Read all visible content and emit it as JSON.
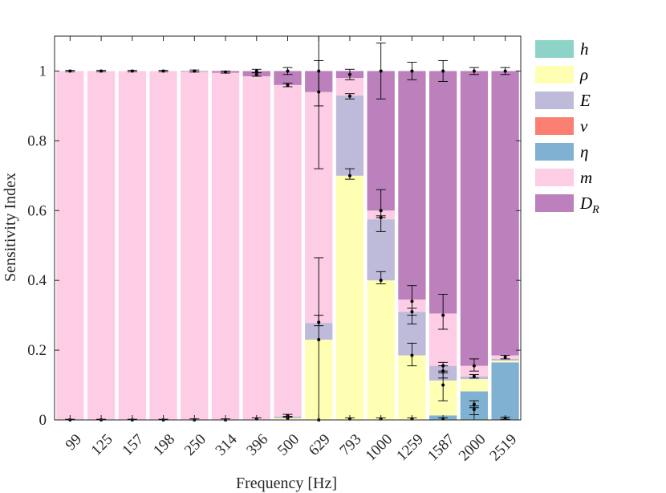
{
  "chart_data": {
    "type": "bar",
    "stacked": true,
    "xlabel": "Frequency [Hz]",
    "ylabel": "Sensitivity Index",
    "ylim": [
      0,
      1.1
    ],
    "yticks": [
      "0",
      "0.2",
      "0.4",
      "0.6",
      "0.8",
      "1"
    ],
    "ytick_values": [
      0,
      0.2,
      0.4,
      0.6,
      0.8,
      1
    ],
    "categories": [
      "99",
      "125",
      "157",
      "198",
      "250",
      "314",
      "396",
      "500",
      "629",
      "793",
      "1000",
      "1259",
      "1587",
      "2000",
      "2519"
    ],
    "legend_position": "outside-right",
    "series": [
      {
        "name": "h",
        "label": "h",
        "sub": "",
        "color": "#8dd3c7",
        "values": [
          0,
          0,
          0,
          0,
          0,
          0,
          0,
          0,
          0,
          0,
          0,
          0,
          0,
          0,
          0
        ]
      },
      {
        "name": "eta",
        "label": "η",
        "sub": "",
        "color": "#80b1d3",
        "values": [
          0,
          0,
          0,
          0,
          0,
          0,
          0,
          0,
          0,
          0,
          0,
          0,
          0.013,
          0.082,
          0.165
        ]
      },
      {
        "name": "rho",
        "label": "ρ",
        "sub": "",
        "color": "#ffffb3",
        "values": [
          0,
          0,
          0,
          0,
          0,
          0,
          0,
          0.005,
          0.23,
          0.7,
          0.4,
          0.185,
          0.1,
          0.035,
          0.005
        ]
      },
      {
        "name": "E",
        "label": "E",
        "sub": "",
        "color": "#bebada",
        "values": [
          0,
          0,
          0,
          0,
          0,
          0,
          0,
          0.005,
          0.048,
          0.23,
          0.175,
          0.125,
          0.042,
          0.008,
          0.005
        ]
      },
      {
        "name": "m",
        "label": "m",
        "sub": "",
        "color": "#fccde5",
        "values": [
          1.0,
          1.0,
          1.0,
          1.0,
          0.998,
          0.995,
          0.985,
          0.95,
          0.662,
          0.05,
          0.025,
          0.035,
          0.15,
          0.03,
          0.01
        ]
      },
      {
        "name": "D_R",
        "label": "D",
        "sub": "R",
        "color": "#bc80bd",
        "values": [
          0,
          0,
          0,
          0,
          0.002,
          0.005,
          0.015,
          0.04,
          0.06,
          0.02,
          0.4,
          0.655,
          0.695,
          0.845,
          0.815
        ]
      },
      {
        "name": "nu",
        "label": "ν",
        "sub": "",
        "color": "#fb8072",
        "values": [
          0,
          0,
          0,
          0,
          0,
          0,
          0,
          0,
          0,
          0,
          0,
          0,
          0,
          0,
          0
        ]
      }
    ],
    "legend_order": [
      "h",
      "rho",
      "E",
      "nu",
      "eta",
      "m",
      "D_R"
    ],
    "error_bars": [
      {
        "category": "99",
        "y": 1.0,
        "low": 0.998,
        "high": 1.002
      },
      {
        "category": "99",
        "y": 0.0,
        "low": 0.0,
        "high": 0.002
      },
      {
        "category": "125",
        "y": 1.0,
        "low": 0.998,
        "high": 1.002
      },
      {
        "category": "125",
        "y": 0.0,
        "low": 0.0,
        "high": 0.002
      },
      {
        "category": "157",
        "y": 1.0,
        "low": 0.998,
        "high": 1.002
      },
      {
        "category": "157",
        "y": 0.0,
        "low": 0.0,
        "high": 0.002
      },
      {
        "category": "198",
        "y": 1.0,
        "low": 0.998,
        "high": 1.002
      },
      {
        "category": "198",
        "y": 0.0,
        "low": 0.0,
        "high": 0.002
      },
      {
        "category": "250",
        "y": 1.0,
        "low": 0.997,
        "high": 1.003
      },
      {
        "category": "250",
        "y": 0.0,
        "low": 0.0,
        "high": 0.003
      },
      {
        "category": "314",
        "y": 0.997,
        "low": 0.994,
        "high": 1.0
      },
      {
        "category": "314",
        "y": 0.0,
        "low": 0.0,
        "high": 0.003
      },
      {
        "category": "396",
        "y": 0.99,
        "low": 0.985,
        "high": 0.995
      },
      {
        "category": "396",
        "y": 1.0,
        "low": 0.995,
        "high": 1.005
      },
      {
        "category": "396",
        "y": 0.003,
        "low": 0.0,
        "high": 0.006
      },
      {
        "category": "500",
        "y": 0.96,
        "low": 0.955,
        "high": 0.965
      },
      {
        "category": "500",
        "y": 1.0,
        "low": 0.99,
        "high": 1.01
      },
      {
        "category": "500",
        "y": 0.012,
        "low": 0.008,
        "high": 0.016
      },
      {
        "category": "500",
        "y": 0.005,
        "low": 0.0,
        "high": 0.01
      },
      {
        "category": "629",
        "y": 0.94,
        "low": 0.72,
        "high": 1.03
      },
      {
        "category": "629",
        "y": 1.0,
        "low": 0.9,
        "high": 1.1
      },
      {
        "category": "629",
        "y": 0.28,
        "low": 0.27,
        "high": 0.465
      },
      {
        "category": "629",
        "y": 0.23,
        "low": 0.0,
        "high": 0.3
      },
      {
        "category": "629",
        "y": 0.0,
        "low": 0.0,
        "high": 0.0
      },
      {
        "category": "793",
        "y": 0.99,
        "low": 0.975,
        "high": 1.005
      },
      {
        "category": "793",
        "y": 0.928,
        "low": 0.92,
        "high": 0.935
      },
      {
        "category": "793",
        "y": 0.7,
        "low": 0.69,
        "high": 0.72
      },
      {
        "category": "793",
        "y": 0.003,
        "low": 0.0,
        "high": 0.006
      },
      {
        "category": "1000",
        "y": 1.0,
        "low": 0.92,
        "high": 1.08
      },
      {
        "category": "1000",
        "y": 0.6,
        "low": 0.58,
        "high": 0.66
      },
      {
        "category": "1000",
        "y": 0.58,
        "low": 0.54,
        "high": 0.585
      },
      {
        "category": "1000",
        "y": 0.4,
        "low": 0.39,
        "high": 0.425
      },
      {
        "category": "1000",
        "y": 0.003,
        "low": 0.0,
        "high": 0.006
      },
      {
        "category": "1259",
        "y": 1.0,
        "low": 0.975,
        "high": 1.025
      },
      {
        "category": "1259",
        "y": 0.34,
        "low": 0.3,
        "high": 0.385
      },
      {
        "category": "1259",
        "y": 0.31,
        "low": 0.275,
        "high": 0.32
      },
      {
        "category": "1259",
        "y": 0.185,
        "low": 0.155,
        "high": 0.22
      },
      {
        "category": "1259",
        "y": 0.003,
        "low": 0.0,
        "high": 0.006
      },
      {
        "category": "1587",
        "y": 1.0,
        "low": 0.97,
        "high": 1.03
      },
      {
        "category": "1587",
        "y": 0.3,
        "low": 0.26,
        "high": 0.36
      },
      {
        "category": "1587",
        "y": 0.155,
        "low": 0.14,
        "high": 0.165
      },
      {
        "category": "1587",
        "y": 0.14,
        "low": 0.12,
        "high": 0.155
      },
      {
        "category": "1587",
        "y": 0.1,
        "low": 0.055,
        "high": 0.135
      },
      {
        "category": "1587",
        "y": 0.003,
        "low": 0.0,
        "high": 0.006
      },
      {
        "category": "2000",
        "y": 1.0,
        "low": 0.99,
        "high": 1.01
      },
      {
        "category": "2000",
        "y": 0.155,
        "low": 0.14,
        "high": 0.175
      },
      {
        "category": "2000",
        "y": 0.125,
        "low": 0.12,
        "high": 0.13
      },
      {
        "category": "2000",
        "y": 0.045,
        "low": 0.035,
        "high": 0.055
      },
      {
        "category": "2000",
        "y": 0.03,
        "low": 0.015,
        "high": 0.04
      },
      {
        "category": "2519",
        "y": 1.0,
        "low": 0.99,
        "high": 1.01
      },
      {
        "category": "2519",
        "y": 0.18,
        "low": 0.175,
        "high": 0.185
      },
      {
        "category": "2519",
        "y": 0.005,
        "low": 0.002,
        "high": 0.008
      }
    ],
    "colors": {
      "axis": "#262626",
      "error_bar": "#000000",
      "background": "#ffffff"
    }
  }
}
